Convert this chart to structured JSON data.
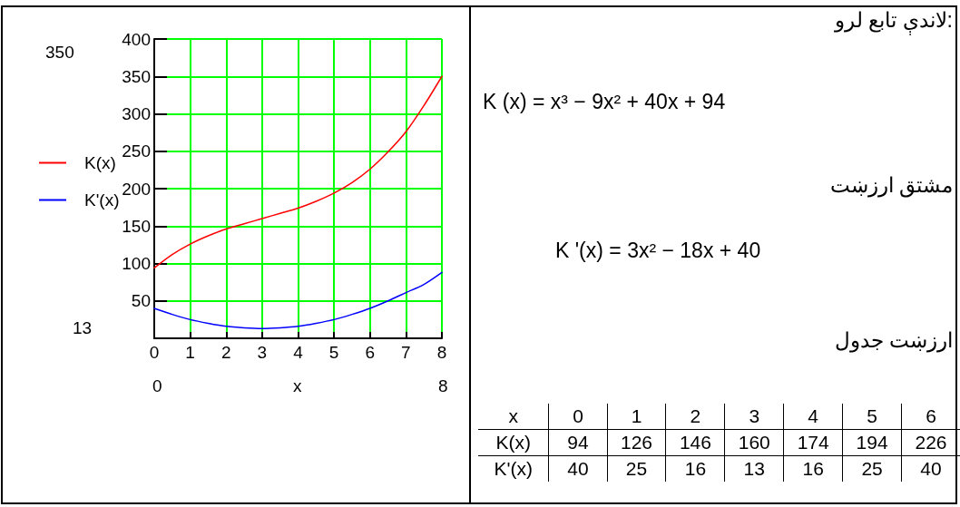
{
  "chart_data": [
    {
      "type": "line",
      "xlabel": "x",
      "x": [
        0,
        0.5,
        1,
        1.5,
        2,
        2.5,
        3,
        3.5,
        4,
        4.5,
        5,
        5.5,
        6,
        6.5,
        7,
        7.5,
        8
      ],
      "series": [
        {
          "name": "K(x)",
          "color": "#ff0000",
          "values": [
            94,
            112,
            126,
            137,
            146,
            153,
            160,
            167,
            174,
            183,
            194,
            208,
            226,
            249,
            276,
            311,
            350
          ]
        },
        {
          "name": "K'(x)",
          "color": "#0000ff",
          "values": [
            40,
            32,
            25,
            20,
            16,
            14,
            13,
            14,
            16,
            20,
            25,
            32,
            40,
            50,
            61,
            72,
            88
          ]
        }
      ],
      "xlim": [
        0,
        8
      ],
      "xticks": [
        0,
        1,
        2,
        3,
        4,
        5,
        6,
        7,
        8
      ],
      "ylim": [
        0,
        400
      ],
      "yticks": [
        {
          "value": 0,
          "label": null
        },
        50,
        100,
        150,
        200,
        250,
        300,
        350,
        400
      ],
      "grid": true,
      "legend": "left",
      "marker": "none",
      "line_style": "solid",
      "annotations": [
        "350",
        "13",
        "0",
        "8",
        "لاندې تابع لرو:",
        "K (x) = x³ − 9x² + 40x + 94",
        "مشتق ارزښت",
        "K '(x) = 3x² − 18x + 40",
        "ارزښت جدول"
      ]
    },
    {
      "type": "heatmap",
      "xlabel": "x",
      "categories": [
        "0",
        "1",
        "2",
        "3",
        "4",
        "5",
        "6"
      ],
      "y_categories": [
        "K(x)",
        "K'(x)"
      ],
      "cells": [
        [
          94,
          126,
          146,
          160,
          174,
          194,
          226
        ],
        [
          40,
          25,
          16,
          13,
          16,
          25,
          40
        ]
      ],
      "data_labels": true
    }
  ]
}
